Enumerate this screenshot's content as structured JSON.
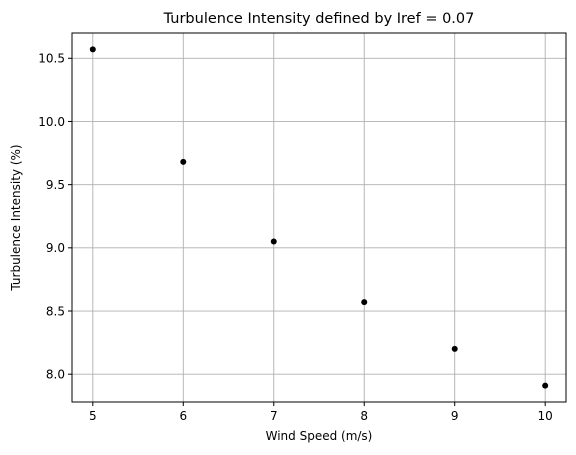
{
  "chart_data": {
    "type": "scatter",
    "title": "Turbulence Intensity defined by Iref = 0.07",
    "xlabel": "Wind Speed (m/s)",
    "ylabel": "Turbulence Intensity (%)",
    "xlim": [
      4.77,
      10.23
    ],
    "ylim": [
      7.78,
      10.7
    ],
    "xticks": [
      5,
      6,
      7,
      8,
      9,
      10
    ],
    "xtick_labels": [
      "5",
      "6",
      "7",
      "8",
      "9",
      "10"
    ],
    "yticks": [
      8.0,
      8.5,
      9.0,
      9.5,
      10.0,
      10.5
    ],
    "ytick_labels": [
      "8.0",
      "8.5",
      "9.0",
      "9.5",
      "10.0",
      "10.5"
    ],
    "grid": true,
    "marker_color": "#000000",
    "series": [
      {
        "x": [
          5,
          6,
          7,
          8,
          9,
          10
        ],
        "y": [
          10.57,
          9.68,
          9.05,
          8.57,
          8.2,
          7.91
        ]
      }
    ]
  }
}
